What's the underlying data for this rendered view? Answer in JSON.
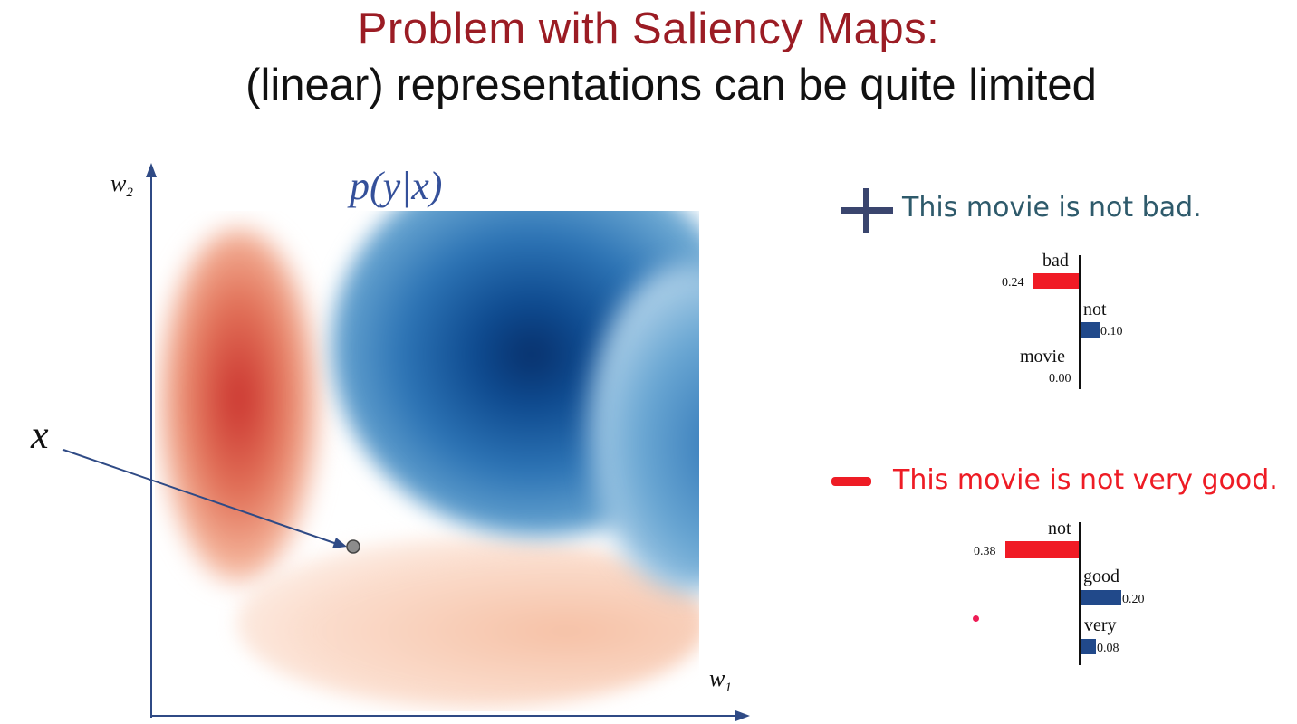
{
  "slide": {
    "title_line1": "Problem with Saliency Maps:",
    "title_line2": "(linear) representations can be quite limited"
  },
  "plot": {
    "y_axis_label": "w",
    "y_axis_sub": "2",
    "x_axis_label": "w",
    "x_axis_sub": "1",
    "heatmap_label": "p(y|x)",
    "point_label": "x",
    "colors": {
      "negative": "#c9302c",
      "positive": "#08306b",
      "axis": "#2f4a85",
      "arrow": "#2f4a85",
      "point": "#8c8c8c"
    }
  },
  "examples": [
    {
      "sign": "plus-sign-icon",
      "sentence": "This movie is not bad.",
      "sentence_color": "#2e5a6b",
      "sign_color": "#3a456e",
      "bars": [
        {
          "word": "bad",
          "value": "0.24",
          "direction": "left",
          "magnitude": 0.24,
          "color": "#f01b25"
        },
        {
          "word": "not",
          "value": "0.10",
          "direction": "right",
          "magnitude": 0.1,
          "color": "#21498a"
        },
        {
          "word": "movie",
          "value": "0.00",
          "direction": "left",
          "magnitude": 0.0,
          "color": "#21498a"
        }
      ]
    },
    {
      "sign": "minus-sign-icon",
      "sentence": "This movie is not very good.",
      "sentence_color": "#ee1c25",
      "sign_color": "#ee1c25",
      "bars": [
        {
          "word": "not",
          "value": "0.38",
          "direction": "left",
          "magnitude": 0.38,
          "color": "#f01b25"
        },
        {
          "word": "good",
          "value": "0.20",
          "direction": "right",
          "magnitude": 0.2,
          "color": "#21498a"
        },
        {
          "word": "very",
          "value": "0.08",
          "direction": "right",
          "magnitude": 0.08,
          "color": "#21498a"
        }
      ]
    }
  ]
}
